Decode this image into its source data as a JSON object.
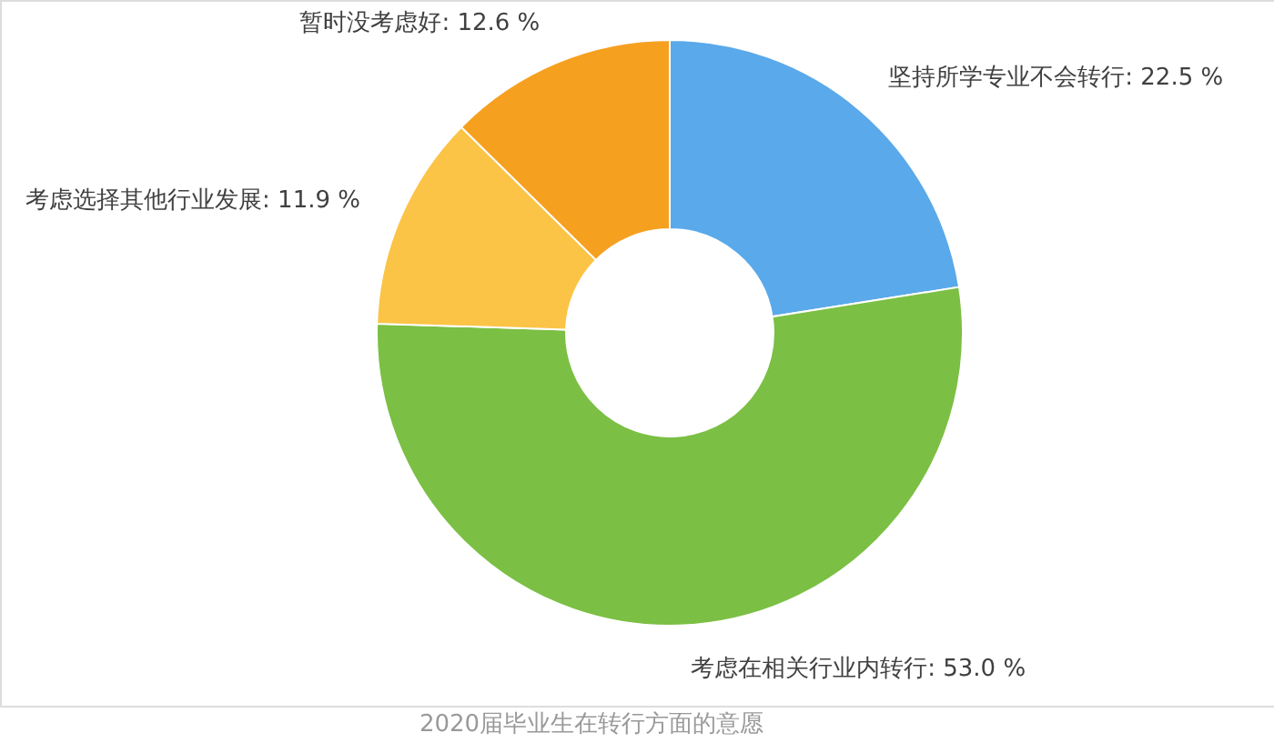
{
  "chart_data": {
    "type": "donut",
    "title": "2020届毕业生在转行方面的意愿",
    "categories": [
      "坚持所学专业不会转行",
      "考虑在相关行业内转行",
      "考虑选择其他行业发展",
      "暂时没考虑好"
    ],
    "values": [
      22.5,
      53.0,
      11.9,
      12.6
    ],
    "colors": [
      "#5aa9ea",
      "#7bbf44",
      "#fbc446",
      "#f6a020"
    ],
    "value_labels": [
      "22.5 %",
      "53.0 %",
      "11.9 %",
      "12.6 %"
    ]
  }
}
